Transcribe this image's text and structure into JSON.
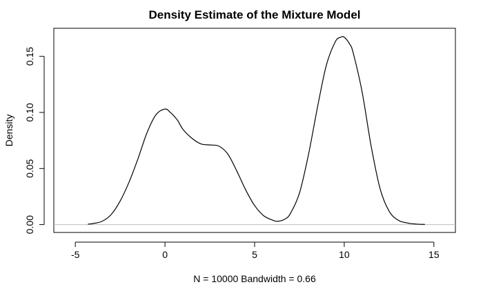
{
  "chart_data": {
    "type": "line",
    "title": "Density Estimate of the Mixture Model",
    "xlabel": "N = 10000   Bandwidth = 0.66",
    "ylabel": "Density",
    "xlim": [
      -6.2,
      16.2
    ],
    "ylim": [
      -0.007,
      0.175
    ],
    "x_ticks": [
      -5,
      0,
      5,
      10,
      15
    ],
    "x_tick_labels": [
      "-5",
      "0",
      "5",
      "10",
      "15"
    ],
    "y_ticks": [
      0.0,
      0.05,
      0.1,
      0.15
    ],
    "y_tick_labels": [
      "0.00",
      "0.05",
      "0.10",
      "0.15"
    ],
    "grid": false,
    "baseline_at_zero": true,
    "series": [
      {
        "x": [
          -4.3,
          -4.0,
          -3.5,
          -3.0,
          -2.5,
          -2.0,
          -1.5,
          -1.0,
          -0.5,
          0.0,
          0.3,
          0.7,
          1.0,
          1.5,
          2.0,
          2.5,
          3.0,
          3.5,
          4.0,
          4.5,
          5.0,
          5.5,
          6.0,
          6.3,
          6.7,
          7.0,
          7.5,
          8.0,
          8.5,
          9.0,
          9.5,
          9.8,
          10.0,
          10.3,
          10.5,
          11.0,
          11.5,
          12.0,
          12.5,
          13.0,
          13.5,
          14.0,
          14.5
        ],
        "y": [
          0.0004,
          0.001,
          0.003,
          0.009,
          0.021,
          0.038,
          0.059,
          0.082,
          0.098,
          0.103,
          0.1,
          0.093,
          0.085,
          0.077,
          0.072,
          0.071,
          0.07,
          0.063,
          0.048,
          0.031,
          0.017,
          0.008,
          0.004,
          0.003,
          0.005,
          0.01,
          0.028,
          0.062,
          0.104,
          0.142,
          0.163,
          0.167,
          0.167,
          0.161,
          0.153,
          0.118,
          0.07,
          0.032,
          0.012,
          0.004,
          0.0015,
          0.0005,
          0.0002
        ]
      }
    ]
  }
}
